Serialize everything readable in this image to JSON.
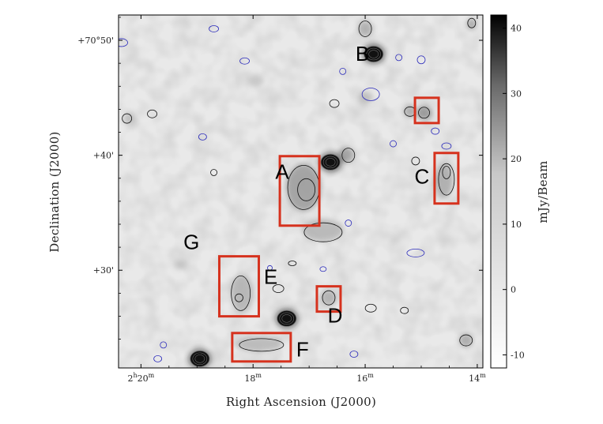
{
  "chart_data": {
    "type": "heatmap",
    "title": "",
    "xlabel": "Right Ascension (J2000)",
    "ylabel": "Declination (J2000)",
    "colorbar_label": "mJy/Beam",
    "x_ticks": [
      {
        "label_main": "2",
        "label_sup": "h",
        "label_main2": "20",
        "label_sup2": "m",
        "ra_min": 20
      },
      {
        "label_main": "18",
        "label_sup": "m",
        "ra_min": 18
      },
      {
        "label_main": "16",
        "label_sup": "m",
        "ra_min": 16
      },
      {
        "label_main": "14",
        "label_sup": "m",
        "ra_min": 14
      }
    ],
    "y_ticks": [
      {
        "label": "+70°50'",
        "dec_arcmin": 50
      },
      {
        "label": "+40'",
        "dec_arcmin": 40
      },
      {
        "label": "+30'",
        "dec_arcmin": 30
      }
    ],
    "colorbar_ticks": [
      {
        "label": "40",
        "value": 40
      },
      {
        "label": "30",
        "value": 30
      },
      {
        "label": "20",
        "value": 20
      },
      {
        "label": "10",
        "value": 10
      },
      {
        "label": "0",
        "value": 0
      },
      {
        "label": "-10",
        "value": -10
      }
    ],
    "colorbar_range": [
      -12,
      42
    ],
    "colormap": {
      "low": "#ffffff",
      "high": "#000000"
    },
    "x_range_ra_min": [
      20.4,
      13.9
    ],
    "y_range_dec_arcmin": [
      21.5,
      52.2
    ],
    "regions": [
      {
        "id": "A",
        "ra_min": 17.17,
        "dec_arcmin": 36.9
      },
      {
        "id": "B",
        "ra_min": 16.05,
        "dec_arcmin": 48.7
      },
      {
        "id": "C",
        "ra_min": 14.55,
        "dec_arcmin": 38.0
      },
      {
        "id": "D",
        "ra_min": 16.65,
        "dec_arcmin": 27.5
      },
      {
        "id": "E",
        "ra_min": 18.25,
        "dec_arcmin": 28.6
      },
      {
        "id": "F",
        "ra_min": 17.85,
        "dec_arcmin": 23.3
      },
      {
        "id": "G",
        "ra_min": 19.1,
        "dec_arcmin": 32.3
      }
    ],
    "bright_sources": [
      {
        "ra_min": 15.85,
        "dec_arcmin": 48.8,
        "flux": 45
      },
      {
        "ra_min": 16.62,
        "dec_arcmin": 39.4,
        "flux": 44
      },
      {
        "ra_min": 17.4,
        "dec_arcmin": 25.8,
        "flux": 44
      },
      {
        "ra_min": 18.95,
        "dec_arcmin": 22.3,
        "flux": 44
      }
    ],
    "colors": {
      "box": "#d6321e",
      "contour_pos": "#111111",
      "contour_neg": "#2b2bbb"
    },
    "grid": false
  }
}
